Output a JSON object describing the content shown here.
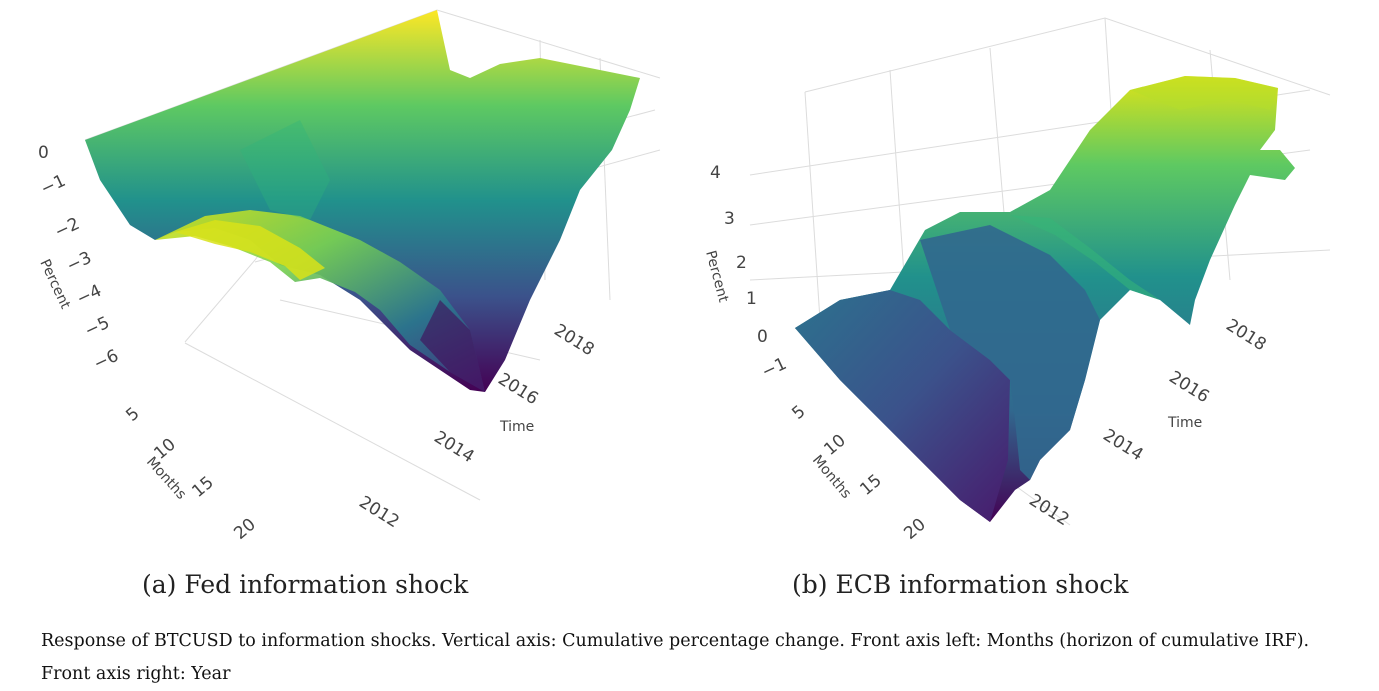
{
  "chart_data": [
    {
      "type": "surface3d",
      "subcaption": "(a) Fed information shock",
      "z_label": "Percent",
      "z_ticks": [
        "0",
        "−1",
        "−2",
        "−3",
        "−4",
        "−5",
        "−6"
      ],
      "z_range": [
        -6.5,
        0.5
      ],
      "months_label": "Months",
      "months_ticks": [
        "5",
        "10",
        "15",
        "20"
      ],
      "time_label": "Time",
      "time_ticks": [
        "2012",
        "2014",
        "2016",
        "2018"
      ],
      "colorscale": [
        "#440154",
        "#3b528b",
        "#21918c",
        "#5ec962",
        "#fde725"
      ],
      "approx_surface": {
        "time": [
          2011,
          2012,
          2013,
          2014,
          2015,
          2016,
          2017,
          2018,
          2019
        ],
        "months_horizon": 22,
        "cumulative_percent_at_horizon": [
          -1.0,
          -1.8,
          -2.8,
          -3.8,
          -5.5,
          -6.0,
          -4.5,
          -2.0,
          -0.8
        ]
      }
    },
    {
      "type": "surface3d",
      "subcaption": "(b) ECB information shock",
      "z_label": "Percent",
      "z_ticks": [
        "4",
        "3",
        "2",
        "1",
        "0",
        "−1"
      ],
      "z_range": [
        -1.5,
        4.5
      ],
      "months_label": "Months",
      "months_ticks": [
        "5",
        "10",
        "15",
        "20"
      ],
      "time_label": "Time",
      "time_ticks": [
        "2012",
        "2014",
        "2016",
        "2018"
      ],
      "colorscale": [
        "#440154",
        "#3b528b",
        "#21918c",
        "#5ec962",
        "#fde725"
      ],
      "approx_surface": {
        "time": [
          2011,
          2012,
          2013,
          2014,
          2015,
          2016,
          2017,
          2018,
          2019
        ],
        "months_horizon": 22,
        "cumulative_percent_at_horizon": [
          -1.2,
          -1.0,
          0.8,
          1.5,
          1.6,
          2.5,
          3.8,
          4.2,
          3.9
        ]
      }
    }
  ],
  "caption": {
    "line1": "Response of BTCUSD to information shocks. Vertical axis: Cumulative percentage change. Front axis left: Months (horizon of cumulative IRF).",
    "line2": "Front axis right: Year"
  }
}
